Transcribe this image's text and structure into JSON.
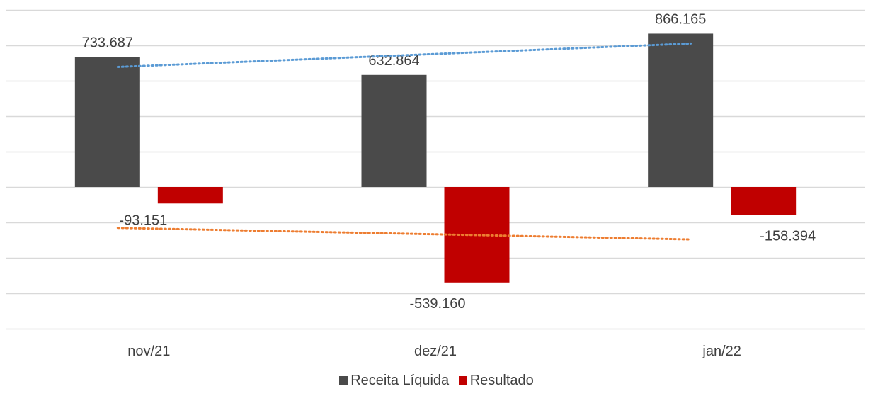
{
  "chart_data": {
    "type": "bar",
    "categories": [
      "nov/21",
      "dez/21",
      "jan/22"
    ],
    "series": [
      {
        "name": "Receita Líquida",
        "color": "#4a4a4a",
        "values": [
          733687,
          632864,
          866165
        ],
        "labels": [
          "733.687",
          "632.864",
          "866.165"
        ],
        "trendline_color": "#5b9bd5"
      },
      {
        "name": "Resultado",
        "color": "#c00000",
        "values": [
          -93151,
          -539160,
          -158394
        ],
        "labels": [
          "-93.151",
          "-539.160",
          "-158.394"
        ],
        "trendline_color": "#ed7d31"
      }
    ],
    "trendlines": "linear, dotted",
    "ylim": [
      -800000,
      1000000
    ],
    "y_tick_step": 200000,
    "y_tick_labels_shown": false,
    "grid": true,
    "legend_position": "bottom"
  }
}
